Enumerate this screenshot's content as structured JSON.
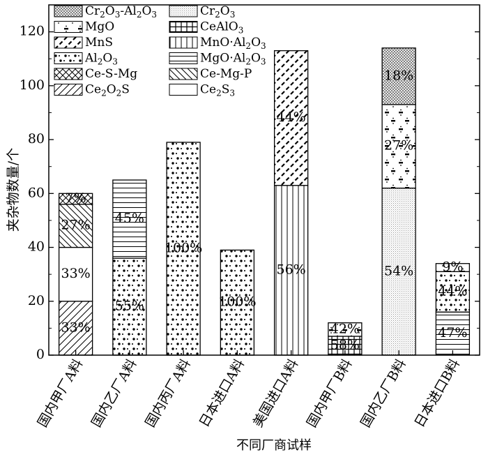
{
  "chart_data": {
    "type": "bar",
    "stacked": true,
    "xlabel": "不同厂商试样",
    "ylabel": "夹杂物数量/个",
    "ylim": [
      0,
      130
    ],
    "yticks": [
      0,
      20,
      40,
      60,
      80,
      100,
      120
    ],
    "categories": [
      "国内甲厂A料",
      "国内乙厂A料",
      "国内丙厂A料",
      "日本进口A料",
      "美国进口A料",
      "国内甲厂B料",
      "国内乙厂B料",
      "日本进口B料"
    ],
    "legend_position": "top-left",
    "legend": [
      {
        "name": "Cr2O3-Al2O3",
        "base": "Cr",
        "parts": [
          [
            "2",
            "O"
          ],
          [
            "3",
            "-Al"
          ],
          [
            "2",
            "O"
          ],
          [
            "3",
            ""
          ]
        ],
        "pattern": "cross"
      },
      {
        "name": "Cr2O3",
        "base": "Cr",
        "parts": [
          [
            "2",
            "O"
          ],
          [
            "3",
            ""
          ]
        ],
        "pattern": "dots"
      },
      {
        "name": "MgO",
        "base": "MgO",
        "parts": [],
        "pattern": "mgo"
      },
      {
        "name": "CeAlO3",
        "base": "CeAlO",
        "parts": [
          [
            "3",
            ""
          ]
        ],
        "pattern": "grid"
      },
      {
        "name": "MnS",
        "base": "MnS",
        "parts": [],
        "pattern": "mns"
      },
      {
        "name": "MnO·Al2O3",
        "base": "MnO·Al",
        "parts": [
          [
            "2",
            "O"
          ],
          [
            "3",
            ""
          ]
        ],
        "pattern": "vlines"
      },
      {
        "name": "Al2O3",
        "base": "Al",
        "parts": [
          [
            "2",
            "O"
          ],
          [
            "3",
            ""
          ]
        ],
        "pattern": "al2o3"
      },
      {
        "name": "MgO·Al2O3",
        "base": "MgO·Al",
        "parts": [
          [
            "2",
            "O"
          ],
          [
            "3",
            ""
          ]
        ],
        "pattern": "hlines"
      },
      {
        "name": "Ce-S-Mg",
        "base": "Ce-S-Mg",
        "parts": [],
        "pattern": "xhatch"
      },
      {
        "name": "Ce-Mg-P",
        "base": "Ce-Mg-P",
        "parts": [],
        "pattern": "bslash"
      },
      {
        "name": "Ce2O2S",
        "base": "Ce",
        "parts": [
          [
            "2",
            "O"
          ],
          [
            "2",
            "S"
          ]
        ],
        "pattern": "fslash"
      },
      {
        "name": "Ce2S3",
        "base": "Ce",
        "parts": [
          [
            "2",
            "S"
          ],
          [
            "3",
            ""
          ]
        ],
        "pattern": "blank"
      }
    ],
    "series": [
      {
        "category": "国内甲厂A料",
        "segments": [
          {
            "type": "Ce2O2S",
            "value": 20,
            "label": "33%"
          },
          {
            "type": "Ce2S3",
            "value": 20,
            "label": "33%"
          },
          {
            "type": "Ce-Mg-P",
            "value": 16,
            "label": "27%"
          },
          {
            "type": "Ce-S-Mg",
            "value": 4,
            "label": "7%"
          }
        ]
      },
      {
        "category": "国内乙厂A料",
        "segments": [
          {
            "type": "Al2O3",
            "value": 36,
            "label": "55%"
          },
          {
            "type": "MgO·Al2O3",
            "value": 29,
            "label": "45%"
          }
        ]
      },
      {
        "category": "国内丙厂A料",
        "segments": [
          {
            "type": "Al2O3",
            "value": 79,
            "label": "100%"
          }
        ]
      },
      {
        "category": "日本进口A料",
        "segments": [
          {
            "type": "Al2O3",
            "value": 39,
            "label": "100%"
          }
        ]
      },
      {
        "category": "美国进口A料",
        "segments": [
          {
            "type": "MnO·Al2O3",
            "value": 63,
            "label": "56%"
          },
          {
            "type": "MnS",
            "value": 50,
            "label": "44%"
          }
        ]
      },
      {
        "category": "国内甲厂B料",
        "segments": [
          {
            "type": "CeAlO3",
            "value": 7,
            "label": "58%"
          },
          {
            "type": "MgO",
            "value": 5,
            "label": "42%"
          }
        ]
      },
      {
        "category": "国内乙厂B料",
        "segments": [
          {
            "type": "Cr2O3",
            "value": 62,
            "label": "54%"
          },
          {
            "type": "MgO",
            "value": 31,
            "label": "27%"
          },
          {
            "type": "Cr2O3-Al2O3",
            "value": 21,
            "label": "18%"
          }
        ]
      },
      {
        "category": "日本进口B料",
        "segments": [
          {
            "type": "MgO·Al2O3",
            "value": 16,
            "label": "47%"
          },
          {
            "type": "Al2O3",
            "value": 15,
            "label": "44%"
          },
          {
            "type": "MgO",
            "value": 3,
            "label": "9%"
          }
        ]
      }
    ]
  }
}
